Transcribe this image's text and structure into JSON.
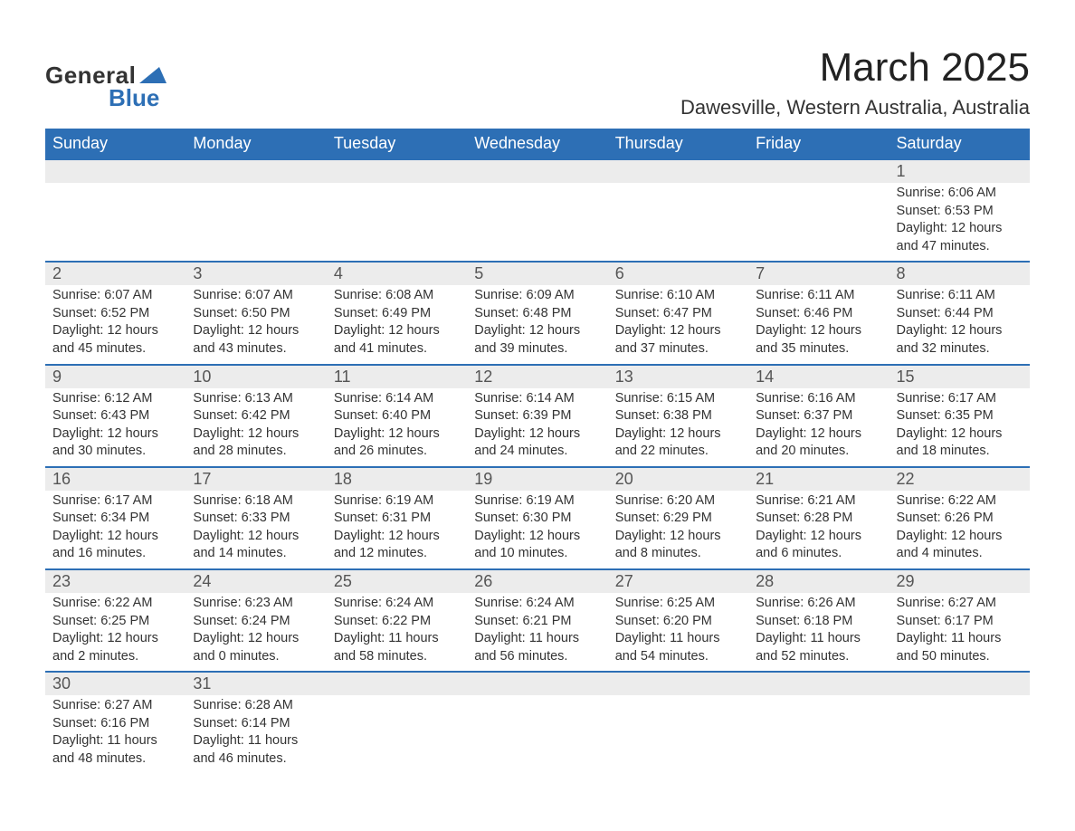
{
  "brand": {
    "general": "General",
    "blue": "Blue",
    "accent_color": "#2d6fb5"
  },
  "title": "March 2025",
  "location": "Dawesville, Western Australia, Australia",
  "colors": {
    "header_bg": "#2d6fb5",
    "header_text": "#ffffff",
    "daynum_bg": "#ececec",
    "row_border": "#2d6fb5",
    "body_text": "#333333",
    "background": "#ffffff"
  },
  "typography": {
    "title_fontsize": 44,
    "location_fontsize": 22,
    "header_fontsize": 18,
    "daynum_fontsize": 18,
    "details_fontsize": 14.5
  },
  "day_headers": [
    "Sunday",
    "Monday",
    "Tuesday",
    "Wednesday",
    "Thursday",
    "Friday",
    "Saturday"
  ],
  "weeks": [
    [
      null,
      null,
      null,
      null,
      null,
      null,
      {
        "n": "1",
        "sunrise": "Sunrise: 6:06 AM",
        "sunset": "Sunset: 6:53 PM",
        "day1": "Daylight: 12 hours",
        "day2": "and 47 minutes."
      }
    ],
    [
      {
        "n": "2",
        "sunrise": "Sunrise: 6:07 AM",
        "sunset": "Sunset: 6:52 PM",
        "day1": "Daylight: 12 hours",
        "day2": "and 45 minutes."
      },
      {
        "n": "3",
        "sunrise": "Sunrise: 6:07 AM",
        "sunset": "Sunset: 6:50 PM",
        "day1": "Daylight: 12 hours",
        "day2": "and 43 minutes."
      },
      {
        "n": "4",
        "sunrise": "Sunrise: 6:08 AM",
        "sunset": "Sunset: 6:49 PM",
        "day1": "Daylight: 12 hours",
        "day2": "and 41 minutes."
      },
      {
        "n": "5",
        "sunrise": "Sunrise: 6:09 AM",
        "sunset": "Sunset: 6:48 PM",
        "day1": "Daylight: 12 hours",
        "day2": "and 39 minutes."
      },
      {
        "n": "6",
        "sunrise": "Sunrise: 6:10 AM",
        "sunset": "Sunset: 6:47 PM",
        "day1": "Daylight: 12 hours",
        "day2": "and 37 minutes."
      },
      {
        "n": "7",
        "sunrise": "Sunrise: 6:11 AM",
        "sunset": "Sunset: 6:46 PM",
        "day1": "Daylight: 12 hours",
        "day2": "and 35 minutes."
      },
      {
        "n": "8",
        "sunrise": "Sunrise: 6:11 AM",
        "sunset": "Sunset: 6:44 PM",
        "day1": "Daylight: 12 hours",
        "day2": "and 32 minutes."
      }
    ],
    [
      {
        "n": "9",
        "sunrise": "Sunrise: 6:12 AM",
        "sunset": "Sunset: 6:43 PM",
        "day1": "Daylight: 12 hours",
        "day2": "and 30 minutes."
      },
      {
        "n": "10",
        "sunrise": "Sunrise: 6:13 AM",
        "sunset": "Sunset: 6:42 PM",
        "day1": "Daylight: 12 hours",
        "day2": "and 28 minutes."
      },
      {
        "n": "11",
        "sunrise": "Sunrise: 6:14 AM",
        "sunset": "Sunset: 6:40 PM",
        "day1": "Daylight: 12 hours",
        "day2": "and 26 minutes."
      },
      {
        "n": "12",
        "sunrise": "Sunrise: 6:14 AM",
        "sunset": "Sunset: 6:39 PM",
        "day1": "Daylight: 12 hours",
        "day2": "and 24 minutes."
      },
      {
        "n": "13",
        "sunrise": "Sunrise: 6:15 AM",
        "sunset": "Sunset: 6:38 PM",
        "day1": "Daylight: 12 hours",
        "day2": "and 22 minutes."
      },
      {
        "n": "14",
        "sunrise": "Sunrise: 6:16 AM",
        "sunset": "Sunset: 6:37 PM",
        "day1": "Daylight: 12 hours",
        "day2": "and 20 minutes."
      },
      {
        "n": "15",
        "sunrise": "Sunrise: 6:17 AM",
        "sunset": "Sunset: 6:35 PM",
        "day1": "Daylight: 12 hours",
        "day2": "and 18 minutes."
      }
    ],
    [
      {
        "n": "16",
        "sunrise": "Sunrise: 6:17 AM",
        "sunset": "Sunset: 6:34 PM",
        "day1": "Daylight: 12 hours",
        "day2": "and 16 minutes."
      },
      {
        "n": "17",
        "sunrise": "Sunrise: 6:18 AM",
        "sunset": "Sunset: 6:33 PM",
        "day1": "Daylight: 12 hours",
        "day2": "and 14 minutes."
      },
      {
        "n": "18",
        "sunrise": "Sunrise: 6:19 AM",
        "sunset": "Sunset: 6:31 PM",
        "day1": "Daylight: 12 hours",
        "day2": "and 12 minutes."
      },
      {
        "n": "19",
        "sunrise": "Sunrise: 6:19 AM",
        "sunset": "Sunset: 6:30 PM",
        "day1": "Daylight: 12 hours",
        "day2": "and 10 minutes."
      },
      {
        "n": "20",
        "sunrise": "Sunrise: 6:20 AM",
        "sunset": "Sunset: 6:29 PM",
        "day1": "Daylight: 12 hours",
        "day2": "and 8 minutes."
      },
      {
        "n": "21",
        "sunrise": "Sunrise: 6:21 AM",
        "sunset": "Sunset: 6:28 PM",
        "day1": "Daylight: 12 hours",
        "day2": "and 6 minutes."
      },
      {
        "n": "22",
        "sunrise": "Sunrise: 6:22 AM",
        "sunset": "Sunset: 6:26 PM",
        "day1": "Daylight: 12 hours",
        "day2": "and 4 minutes."
      }
    ],
    [
      {
        "n": "23",
        "sunrise": "Sunrise: 6:22 AM",
        "sunset": "Sunset: 6:25 PM",
        "day1": "Daylight: 12 hours",
        "day2": "and 2 minutes."
      },
      {
        "n": "24",
        "sunrise": "Sunrise: 6:23 AM",
        "sunset": "Sunset: 6:24 PM",
        "day1": "Daylight: 12 hours",
        "day2": "and 0 minutes."
      },
      {
        "n": "25",
        "sunrise": "Sunrise: 6:24 AM",
        "sunset": "Sunset: 6:22 PM",
        "day1": "Daylight: 11 hours",
        "day2": "and 58 minutes."
      },
      {
        "n": "26",
        "sunrise": "Sunrise: 6:24 AM",
        "sunset": "Sunset: 6:21 PM",
        "day1": "Daylight: 11 hours",
        "day2": "and 56 minutes."
      },
      {
        "n": "27",
        "sunrise": "Sunrise: 6:25 AM",
        "sunset": "Sunset: 6:20 PM",
        "day1": "Daylight: 11 hours",
        "day2": "and 54 minutes."
      },
      {
        "n": "28",
        "sunrise": "Sunrise: 6:26 AM",
        "sunset": "Sunset: 6:18 PM",
        "day1": "Daylight: 11 hours",
        "day2": "and 52 minutes."
      },
      {
        "n": "29",
        "sunrise": "Sunrise: 6:27 AM",
        "sunset": "Sunset: 6:17 PM",
        "day1": "Daylight: 11 hours",
        "day2": "and 50 minutes."
      }
    ],
    [
      {
        "n": "30",
        "sunrise": "Sunrise: 6:27 AM",
        "sunset": "Sunset: 6:16 PM",
        "day1": "Daylight: 11 hours",
        "day2": "and 48 minutes."
      },
      {
        "n": "31",
        "sunrise": "Sunrise: 6:28 AM",
        "sunset": "Sunset: 6:14 PM",
        "day1": "Daylight: 11 hours",
        "day2": "and 46 minutes."
      },
      null,
      null,
      null,
      null,
      null
    ]
  ]
}
